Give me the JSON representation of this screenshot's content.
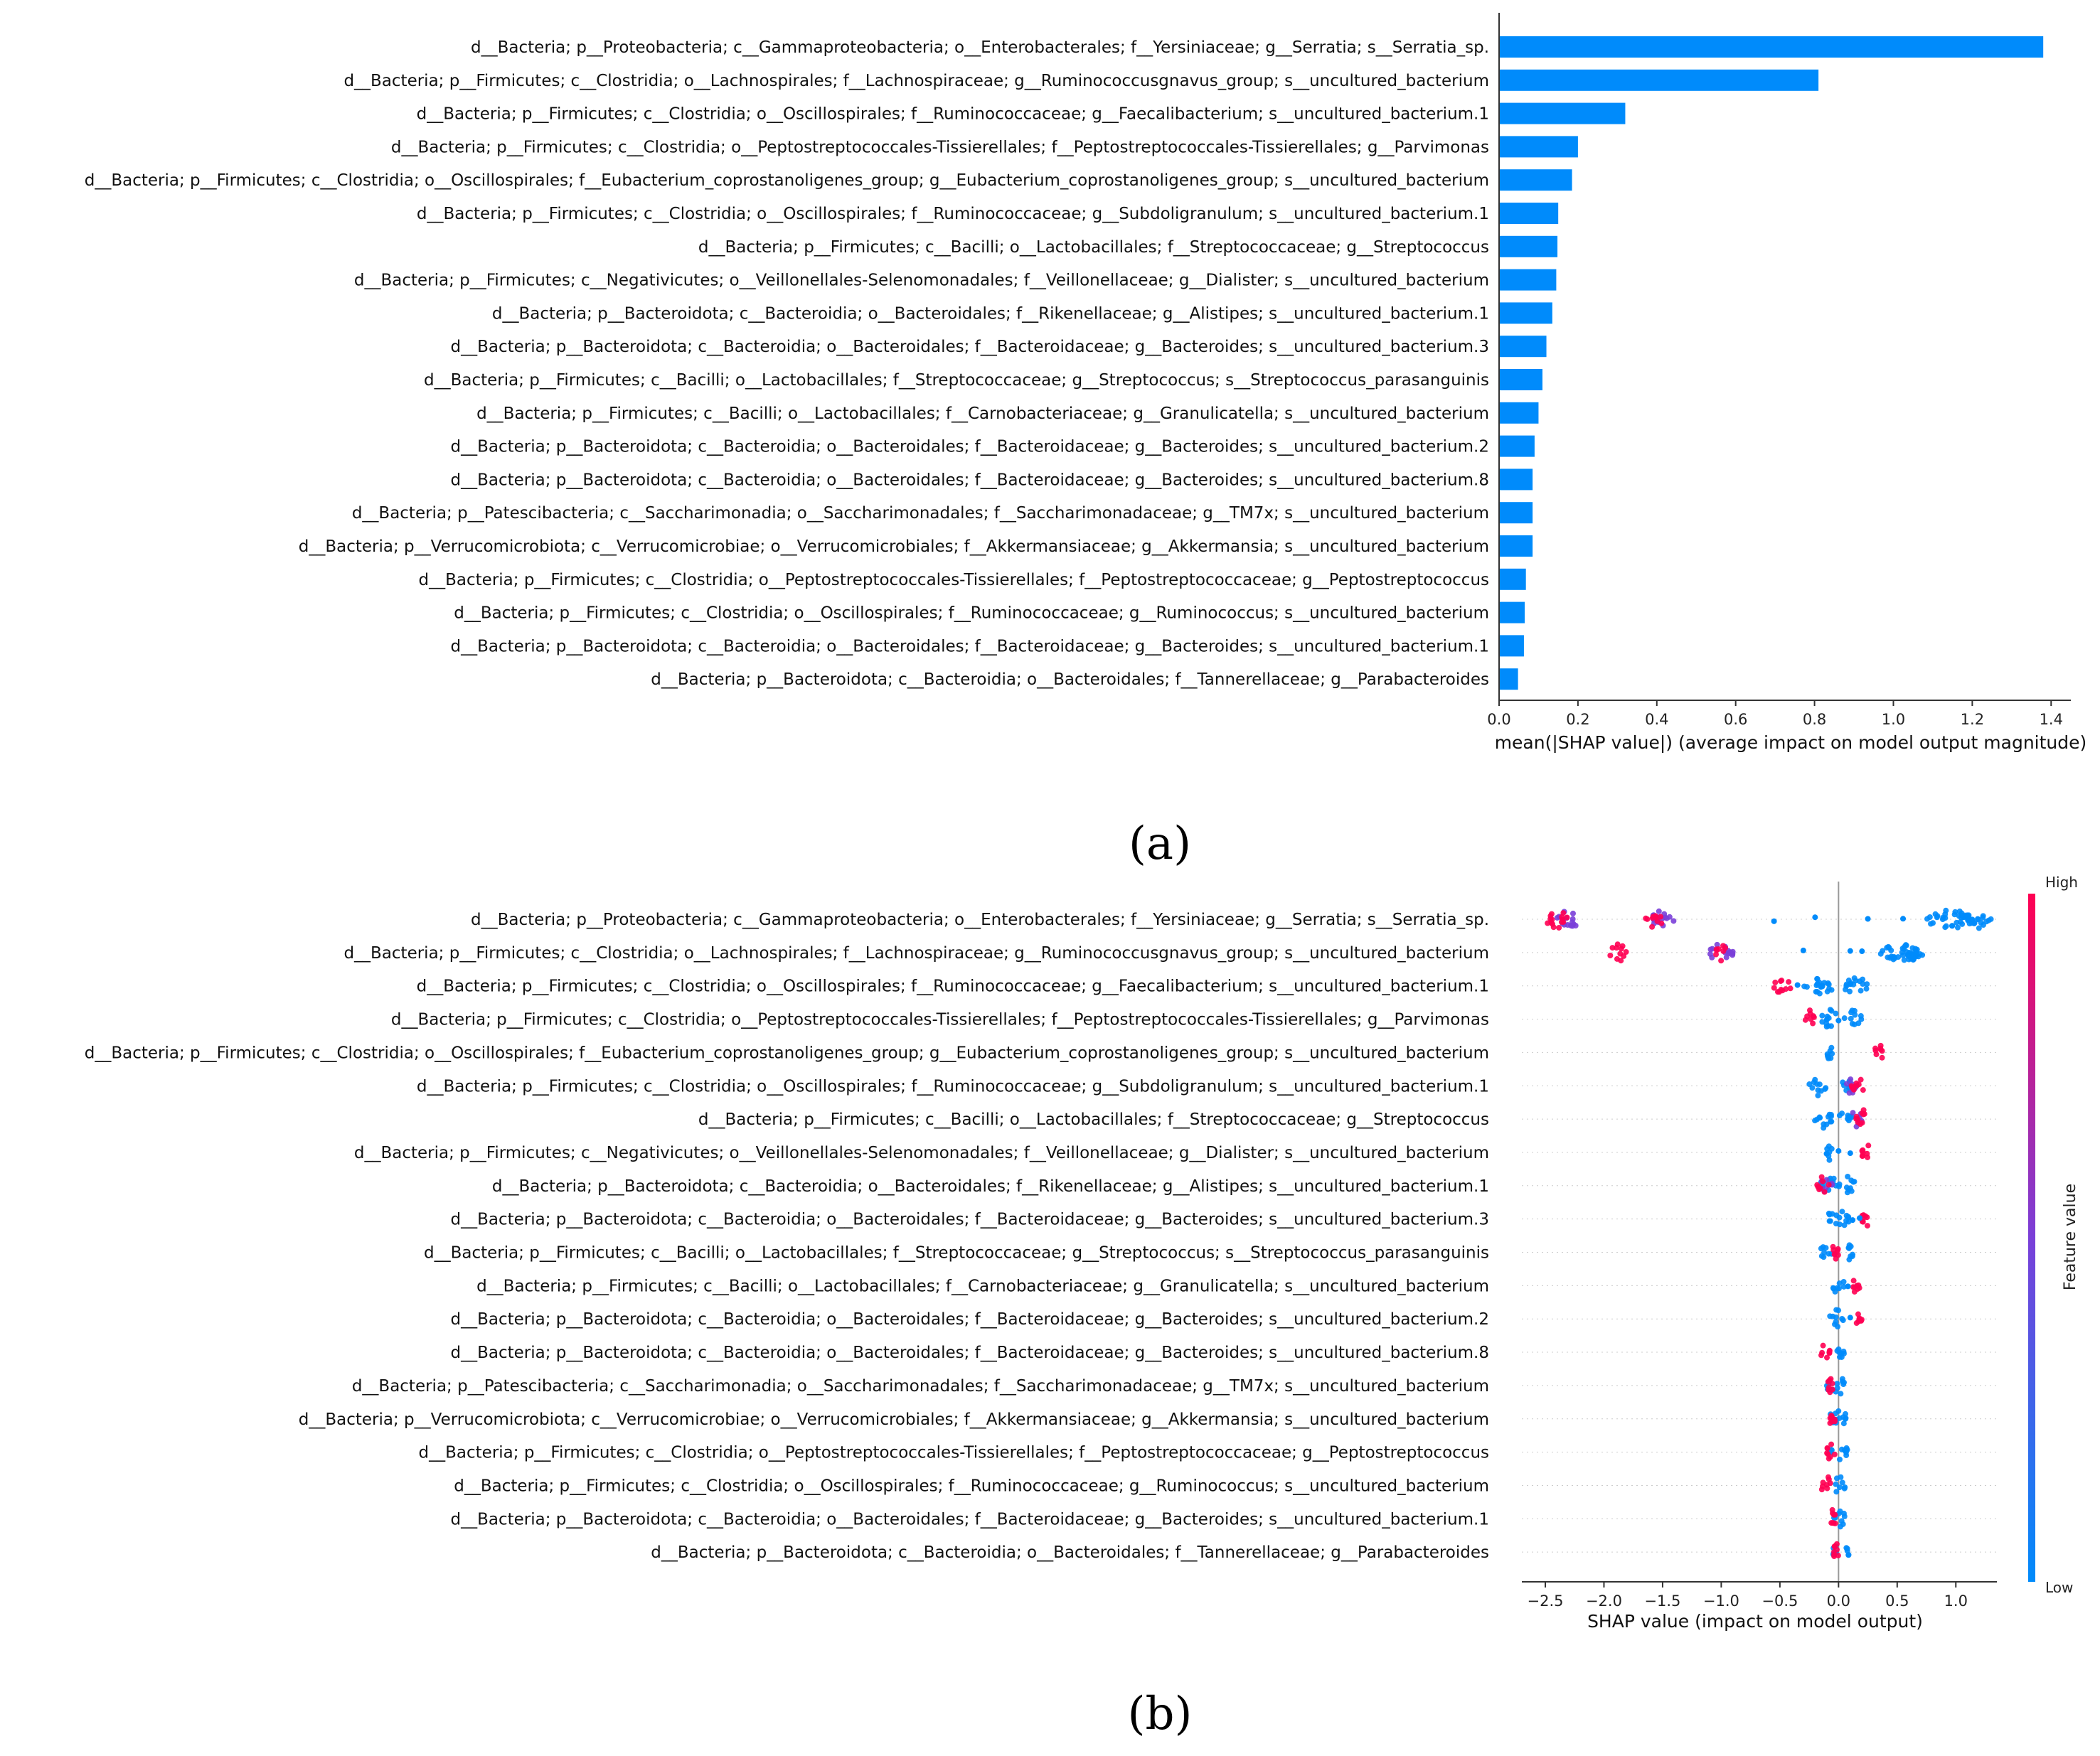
{
  "features": [
    "d__Bacteria; p__Proteobacteria; c__Gammaproteobacteria; o__Enterobacterales; f__Yersiniaceae; g__Serratia; s__Serratia_sp.",
    "d__Bacteria; p__Firmicutes; c__Clostridia; o__Lachnospirales; f__Lachnospiraceae; g__Ruminococcusgnavus_group; s__uncultured_bacterium",
    "d__Bacteria; p__Firmicutes; c__Clostridia; o__Oscillospirales; f__Ruminococcaceae; g__Faecalibacterium; s__uncultured_bacterium.1",
    "d__Bacteria; p__Firmicutes; c__Clostridia; o__Peptostreptococcales-Tissierellales; f__Peptostreptococcales-Tissierellales; g__Parvimonas",
    "d__Bacteria; p__Firmicutes; c__Clostridia; o__Oscillospirales; f__Eubacterium_coprostanoligenes_group; g__Eubacterium_coprostanoligenes_group; s__uncultured_bacterium",
    "d__Bacteria; p__Firmicutes; c__Clostridia; o__Oscillospirales; f__Ruminococcaceae; g__Subdoligranulum; s__uncultured_bacterium.1",
    "d__Bacteria; p__Firmicutes; c__Bacilli; o__Lactobacillales; f__Streptococcaceae; g__Streptococcus",
    "d__Bacteria; p__Firmicutes; c__Negativicutes; o__Veillonellales-Selenomonadales; f__Veillonellaceae; g__Dialister; s__uncultured_bacterium",
    "d__Bacteria; p__Bacteroidota; c__Bacteroidia; o__Bacteroidales; f__Rikenellaceae; g__Alistipes; s__uncultured_bacterium.1",
    "d__Bacteria; p__Bacteroidota; c__Bacteroidia; o__Bacteroidales; f__Bacteroidaceae; g__Bacteroides; s__uncultured_bacterium.3",
    "d__Bacteria; p__Firmicutes; c__Bacilli; o__Lactobacillales; f__Streptococcaceae; g__Streptococcus; s__Streptococcus_parasanguinis",
    "d__Bacteria; p__Firmicutes; c__Bacilli; o__Lactobacillales; f__Carnobacteriaceae; g__Granulicatella; s__uncultured_bacterium",
    "d__Bacteria; p__Bacteroidota; c__Bacteroidia; o__Bacteroidales; f__Bacteroidaceae; g__Bacteroides; s__uncultured_bacterium.2",
    "d__Bacteria; p__Bacteroidota; c__Bacteroidia; o__Bacteroidales; f__Bacteroidaceae; g__Bacteroides; s__uncultured_bacterium.8",
    "d__Bacteria; p__Patescibacteria; c__Saccharimonadia; o__Saccharimonadales; f__Saccharimonadaceae; g__TM7x; s__uncultured_bacterium",
    "d__Bacteria; p__Verrucomicrobiota; c__Verrucomicrobiae; o__Verrucomicrobiales; f__Akkermansiaceae; g__Akkermansia; s__uncultured_bacterium",
    "d__Bacteria; p__Firmicutes; c__Clostridia; o__Peptostreptococcales-Tissierellales; f__Peptostreptococcaceae; g__Peptostreptococcus",
    "d__Bacteria; p__Firmicutes; c__Clostridia; o__Oscillospirales; f__Ruminococcaceae; g__Ruminococcus; s__uncultured_bacterium",
    "d__Bacteria; p__Bacteroidota; c__Bacteroidia; o__Bacteroidales; f__Bacteroidaceae; g__Bacteroides; s__uncultured_bacterium.1",
    "d__Bacteria; p__Bacteroidota; c__Bacteroidia; o__Bacteroidales; f__Tannerellaceae; g__Parabacteroides"
  ],
  "colors": {
    "bar": "#008bfb",
    "low": "#008bfb",
    "high": "#ff0052",
    "axis": "#333333",
    "zero_line": "#999999"
  },
  "chart_data": [
    {
      "type": "bar",
      "orientation": "horizontal",
      "panel_label": "(a)",
      "xlabel": "mean(|SHAP value|) (average impact on model output magnitude)",
      "xlim": [
        0.0,
        1.45
      ],
      "xticks": [
        "0.0",
        "0.2",
        "0.4",
        "0.6",
        "0.8",
        "1.0",
        "1.2",
        "1.4"
      ],
      "values": [
        1.38,
        0.81,
        0.32,
        0.2,
        0.185,
        0.15,
        0.148,
        0.145,
        0.135,
        0.12,
        0.11,
        0.1,
        0.09,
        0.085,
        0.085,
        0.085,
        0.068,
        0.065,
        0.063,
        0.048
      ]
    },
    {
      "type": "scatter",
      "subtype": "beeswarm",
      "panel_label": "(b)",
      "xlabel": "SHAP value (impact on model output)",
      "xlim": [
        -2.7,
        1.35
      ],
      "xticks": [
        "−2.5",
        "−2.0",
        "−1.5",
        "−1.0",
        "−0.5",
        "0.0",
        "0.5",
        "1.0"
      ],
      "colorbar": {
        "label": "Feature value",
        "high": "High",
        "low": "Low"
      },
      "series": [
        {
          "low": [
            [
              0.7,
              1.2
            ],
            [
              1.1,
              1.3
            ]
          ],
          "high": [
            [
              -2.5,
              -2.3
            ],
            [
              -1.65,
              -1.5
            ]
          ],
          "mid": [
            [
              -2.4,
              -2.2
            ],
            [
              -1.6,
              -1.4
            ]
          ],
          "scattered": [
            -0.55,
            -0.2,
            0.25,
            0.55
          ]
        },
        {
          "low": [
            [
              0.35,
              0.75
            ],
            [
              0.5,
              0.7
            ]
          ],
          "high": [
            [
              -1.95,
              -1.8
            ],
            [
              -1.05,
              -0.95
            ]
          ],
          "mid": [
            [
              -1.1,
              -0.9
            ]
          ],
          "scattered": [
            -0.3,
            0.1,
            0.2
          ]
        },
        {
          "low": [
            [
              0.05,
              0.25
            ],
            [
              -0.3,
              -0.05
            ]
          ],
          "high": [
            [
              -0.55,
              -0.4
            ]
          ],
          "mid": [],
          "scattered": [
            -0.35,
            -0.15,
            0.1
          ]
        },
        {
          "low": [
            [
              0.05,
              0.2
            ],
            [
              -0.15,
              0.0
            ]
          ],
          "high": [
            [
              -0.3,
              -0.2
            ]
          ],
          "mid": [],
          "scattered": [
            -0.1,
            0.0
          ]
        },
        {
          "low": [
            [
              -0.1,
              -0.05
            ]
          ],
          "high": [
            [
              0.3,
              0.38
            ]
          ],
          "mid": [],
          "scattered": []
        },
        {
          "low": [
            [
              -0.25,
              -0.1
            ],
            [
              0.0,
              0.1
            ]
          ],
          "high": [
            [
              0.1,
              0.22
            ]
          ],
          "mid": [
            [
              0.05,
              0.15
            ]
          ],
          "scattered": []
        },
        {
          "low": [
            [
              -0.22,
              -0.05
            ],
            [
              0.0,
              0.12
            ]
          ],
          "high": [
            [
              0.15,
              0.28
            ]
          ],
          "mid": [
            [
              0.1,
              0.2
            ]
          ],
          "scattered": []
        },
        {
          "low": [
            [
              -0.12,
              -0.05
            ]
          ],
          "high": [
            [
              0.2,
              0.28
            ]
          ],
          "mid": [],
          "scattered": [
            0.0,
            0.1
          ]
        },
        {
          "low": [
            [
              0.0,
              0.15
            ],
            [
              -0.15,
              0.0
            ]
          ],
          "high": [
            [
              -0.2,
              -0.08
            ]
          ],
          "mid": [
            [
              -0.15,
              -0.05
            ]
          ],
          "scattered": []
        },
        {
          "low": [
            [
              -0.12,
              0.1
            ]
          ],
          "high": [
            [
              0.2,
              0.27
            ]
          ],
          "mid": [],
          "scattered": [
            0.12,
            0.18
          ]
        },
        {
          "low": [
            [
              -0.15,
              -0.05
            ],
            [
              0.05,
              0.12
            ]
          ],
          "high": [
            [
              -0.08,
              0.0
            ]
          ],
          "mid": [],
          "scattered": []
        },
        {
          "low": [
            [
              -0.05,
              0.05
            ]
          ],
          "high": [
            [
              0.12,
              0.2
            ]
          ],
          "mid": [],
          "scattered": [
            0.08
          ]
        },
        {
          "low": [
            [
              -0.08,
              0.05
            ]
          ],
          "high": [
            [
              0.15,
              0.2
            ]
          ],
          "mid": [],
          "scattered": [
            0.1
          ]
        },
        {
          "low": [
            [
              -0.02,
              0.06
            ]
          ],
          "high": [
            [
              -0.15,
              -0.07
            ]
          ],
          "mid": [],
          "scattered": []
        },
        {
          "low": [
            [
              -0.1,
              0.1
            ]
          ],
          "high": [
            [
              -0.1,
              -0.05
            ]
          ],
          "mid": [],
          "scattered": []
        },
        {
          "low": [
            [
              -0.1,
              0.08
            ]
          ],
          "high": [
            [
              -0.08,
              -0.03
            ]
          ],
          "mid": [],
          "scattered": []
        },
        {
          "low": [
            [
              -0.08,
              0.08
            ]
          ],
          "high": [
            [
              -0.1,
              -0.03
            ]
          ],
          "mid": [],
          "scattered": []
        },
        {
          "low": [
            [
              -0.05,
              0.06
            ]
          ],
          "high": [
            [
              -0.15,
              -0.05
            ]
          ],
          "mid": [],
          "scattered": []
        },
        {
          "low": [
            [
              -0.06,
              0.06
            ]
          ],
          "high": [
            [
              -0.08,
              -0.02
            ]
          ],
          "mid": [],
          "scattered": []
        },
        {
          "low": [
            [
              -0.05,
              0.1
            ]
          ],
          "high": [
            [
              -0.04,
              0.0
            ]
          ],
          "mid": [],
          "scattered": []
        }
      ]
    }
  ]
}
